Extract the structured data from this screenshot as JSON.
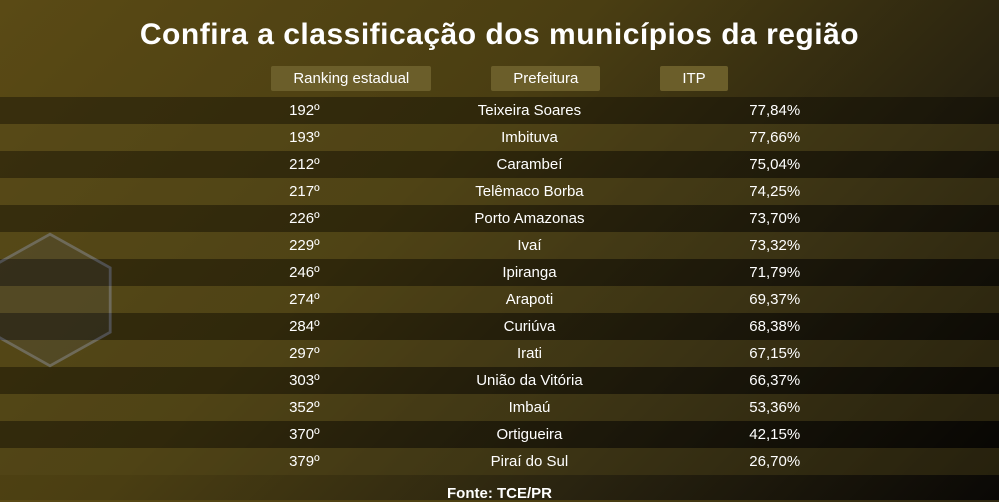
{
  "title": "Confira a classificação dos municípios da região",
  "columns": {
    "rank": "Ranking estadual",
    "prefeitura": "Prefeitura",
    "itp": "ITP"
  },
  "rows": [
    {
      "rank": "192º",
      "prefeitura": "Teixeira Soares",
      "itp": "77,84%"
    },
    {
      "rank": "193º",
      "prefeitura": "Imbituva",
      "itp": "77,66%"
    },
    {
      "rank": "212º",
      "prefeitura": "Carambeí",
      "itp": "75,04%"
    },
    {
      "rank": "217º",
      "prefeitura": "Telêmaco Borba",
      "itp": "74,25%"
    },
    {
      "rank": "226º",
      "prefeitura": "Porto Amazonas",
      "itp": "73,70%"
    },
    {
      "rank": "229º",
      "prefeitura": "Ivaí",
      "itp": "73,32%"
    },
    {
      "rank": "246º",
      "prefeitura": "Ipiranga",
      "itp": "71,79%"
    },
    {
      "rank": "274º",
      "prefeitura": "Arapoti",
      "itp": "69,37%"
    },
    {
      "rank": "284º",
      "prefeitura": "Curiúva",
      "itp": "68,38%"
    },
    {
      "rank": "297º",
      "prefeitura": "Irati",
      "itp": "67,15%"
    },
    {
      "rank": "303º",
      "prefeitura": "União da Vitória",
      "itp": "66,37%"
    },
    {
      "rank": "352º",
      "prefeitura": "Imbaú",
      "itp": "53,36%"
    },
    {
      "rank": "370º",
      "prefeitura": "Ortigueira",
      "itp": "42,15%"
    },
    {
      "rank": "379º",
      "prefeitura": "Piraí do Sul",
      "itp": "26,70%"
    }
  ],
  "source": "Fonte: TCE/PR",
  "style": {
    "title_fontsize": 30,
    "row_fontsize": 15,
    "header_bg": "#6b5e2a",
    "row_odd_bg": "rgba(0,0,0,0.35)",
    "row_even_bg": "rgba(90,78,30,0.35)",
    "text_color": "#ffffff",
    "bg_gradient": [
      "#5a4a15",
      "#4a3e12",
      "#2a2410",
      "#0a0805"
    ],
    "hexagon_stroke": "#7a7a7a",
    "hexagon_fill": "rgba(80,80,80,0.35)"
  }
}
